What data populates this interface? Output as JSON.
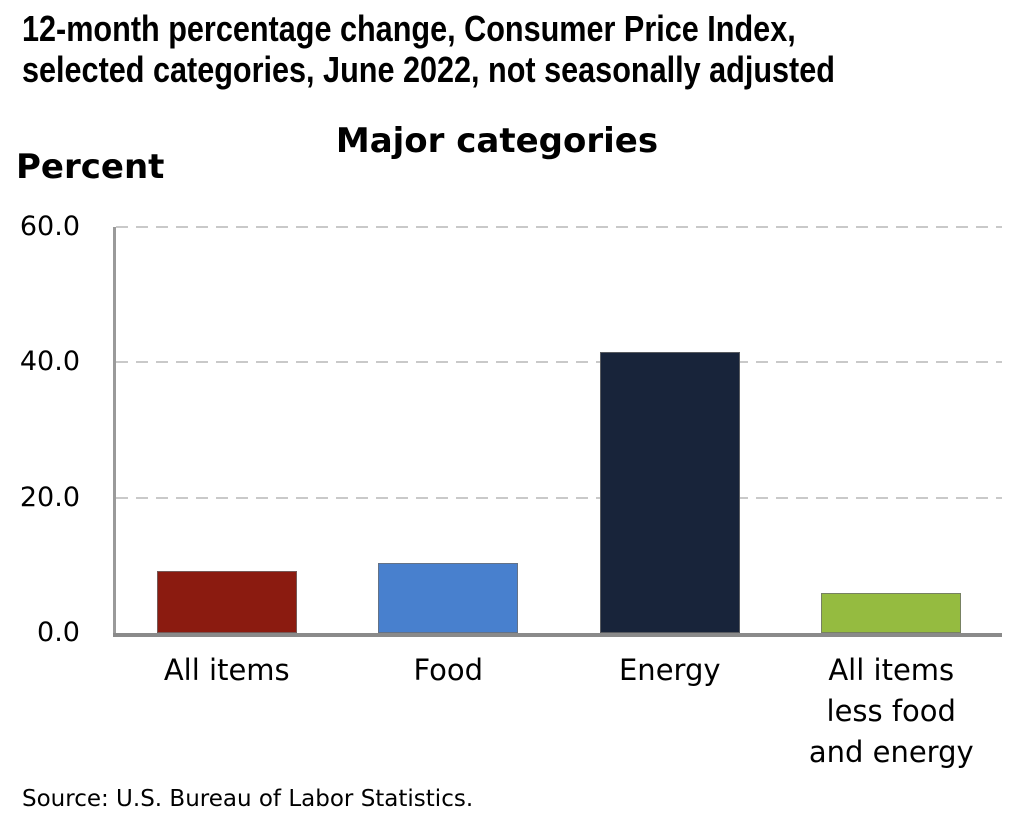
{
  "title": {
    "line1": "12-month percentage change, Consumer Price Index,",
    "line2": "selected categories, June 2022, not seasonally adjusted"
  },
  "chart_data": {
    "type": "bar",
    "title": "Major categories",
    "ylabel": "Percent",
    "xlabel": "",
    "categories": [
      "All items",
      "Food",
      "Energy",
      "All items less food and energy"
    ],
    "categories_display": [
      [
        "All items"
      ],
      [
        "Food"
      ],
      [
        "Energy"
      ],
      [
        "All items",
        "less food",
        "and energy"
      ]
    ],
    "values": [
      9.1,
      10.4,
      41.6,
      5.9
    ],
    "bar_colors": [
      "#8B1B10",
      "#4880CE",
      "#18243A",
      "#95BB40"
    ],
    "ylim": [
      0,
      60
    ],
    "yticks": [
      0,
      20,
      40,
      60
    ],
    "ytick_labels": [
      "0.0",
      "20.0",
      "40.0",
      "60.0"
    ],
    "grid": "horizontal-dashed",
    "gridline_color": "#c9c9c9",
    "axis_color": "#9a9a9a",
    "legend": "none",
    "source": "Source: U.S. Bureau of Labor Statistics."
  }
}
